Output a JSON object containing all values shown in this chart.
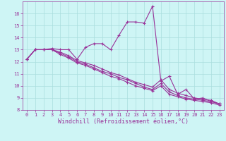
{
  "lines": [
    [
      12.2,
      13.0,
      13.0,
      13.1,
      13.0,
      13.0,
      12.2,
      13.2,
      13.5,
      13.5,
      13.0,
      14.2,
      15.3,
      15.3,
      15.2,
      16.6,
      10.4,
      10.8,
      9.3,
      9.7,
      8.9,
      9.0,
      8.7,
      8.5
    ],
    [
      12.2,
      13.0,
      13.0,
      13.0,
      12.8,
      12.5,
      12.1,
      11.9,
      11.7,
      11.4,
      11.1,
      10.9,
      10.6,
      10.3,
      10.1,
      9.9,
      10.5,
      9.7,
      9.4,
      9.2,
      9.0,
      8.9,
      8.8,
      8.5
    ],
    [
      12.2,
      13.0,
      13.0,
      13.0,
      12.7,
      12.4,
      12.0,
      11.8,
      11.5,
      11.2,
      11.0,
      10.7,
      10.5,
      10.2,
      9.9,
      9.7,
      10.2,
      9.5,
      9.2,
      9.0,
      8.9,
      8.8,
      8.7,
      8.5
    ],
    [
      12.2,
      13.0,
      13.0,
      13.0,
      12.6,
      12.3,
      11.9,
      11.7,
      11.4,
      11.1,
      10.8,
      10.6,
      10.3,
      10.0,
      9.8,
      9.6,
      10.0,
      9.3,
      9.1,
      8.9,
      8.8,
      8.7,
      8.6,
      8.4
    ]
  ],
  "x": [
    0,
    1,
    2,
    3,
    4,
    5,
    6,
    7,
    8,
    9,
    10,
    11,
    12,
    13,
    14,
    15,
    16,
    17,
    18,
    19,
    20,
    21,
    22,
    23
  ],
  "line_color": "#993399",
  "marker": "+",
  "marker_size": 3,
  "line_width": 0.8,
  "bg_color": "#cef5f5",
  "grid_color": "#aadddd",
  "xlabel": "Windchill (Refroidissement éolien,°C)",
  "xlabel_color": "#993399",
  "ylim": [
    8,
    17
  ],
  "xlim": [
    -0.5,
    23.5
  ],
  "yticks": [
    8,
    9,
    10,
    11,
    12,
    13,
    14,
    15,
    16
  ],
  "xticks": [
    0,
    1,
    2,
    3,
    4,
    5,
    6,
    7,
    8,
    9,
    10,
    11,
    12,
    13,
    14,
    15,
    16,
    17,
    18,
    19,
    20,
    21,
    22,
    23
  ],
  "tick_color": "#993399",
  "tick_fontsize": 5.0,
  "xlabel_fontsize": 6.0,
  "markeredgewidth": 0.8
}
